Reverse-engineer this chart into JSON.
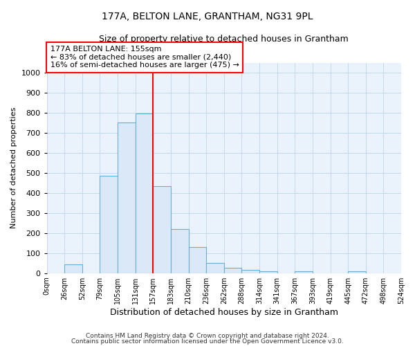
{
  "title": "177A, BELTON LANE, GRANTHAM, NG31 9PL",
  "subtitle": "Size of property relative to detached houses in Grantham",
  "xlabel": "Distribution of detached houses by size in Grantham",
  "ylabel": "Number of detached properties",
  "footer1": "Contains HM Land Registry data © Crown copyright and database right 2024.",
  "footer2": "Contains public sector information licensed under the Open Government Licence v3.0.",
  "bin_labels": [
    "0sqm",
    "26sqm",
    "52sqm",
    "79sqm",
    "105sqm",
    "131sqm",
    "157sqm",
    "183sqm",
    "210sqm",
    "236sqm",
    "262sqm",
    "288sqm",
    "314sqm",
    "341sqm",
    "367sqm",
    "393sqm",
    "419sqm",
    "445sqm",
    "472sqm",
    "498sqm",
    "524sqm"
  ],
  "bar_values": [
    0,
    45,
    0,
    485,
    750,
    795,
    435,
    220,
    130,
    50,
    28,
    15,
    10,
    0,
    8,
    0,
    0,
    8,
    0,
    0
  ],
  "bar_color": "#dae8f7",
  "bar_edge_color": "#6aaed6",
  "red_line_index": 6,
  "annotation_line1": "177A BELTON LANE: 155sqm",
  "annotation_line2": "← 83% of detached houses are smaller (2,440)",
  "annotation_line3": "16% of semi-detached houses are larger (475) →",
  "ylim": [
    0,
    1050
  ],
  "yticks": [
    0,
    100,
    200,
    300,
    400,
    500,
    600,
    700,
    800,
    900,
    1000
  ],
  "plot_bg_color": "#eaf2fb",
  "background_color": "#ffffff",
  "grid_color": "#c5d8ed"
}
